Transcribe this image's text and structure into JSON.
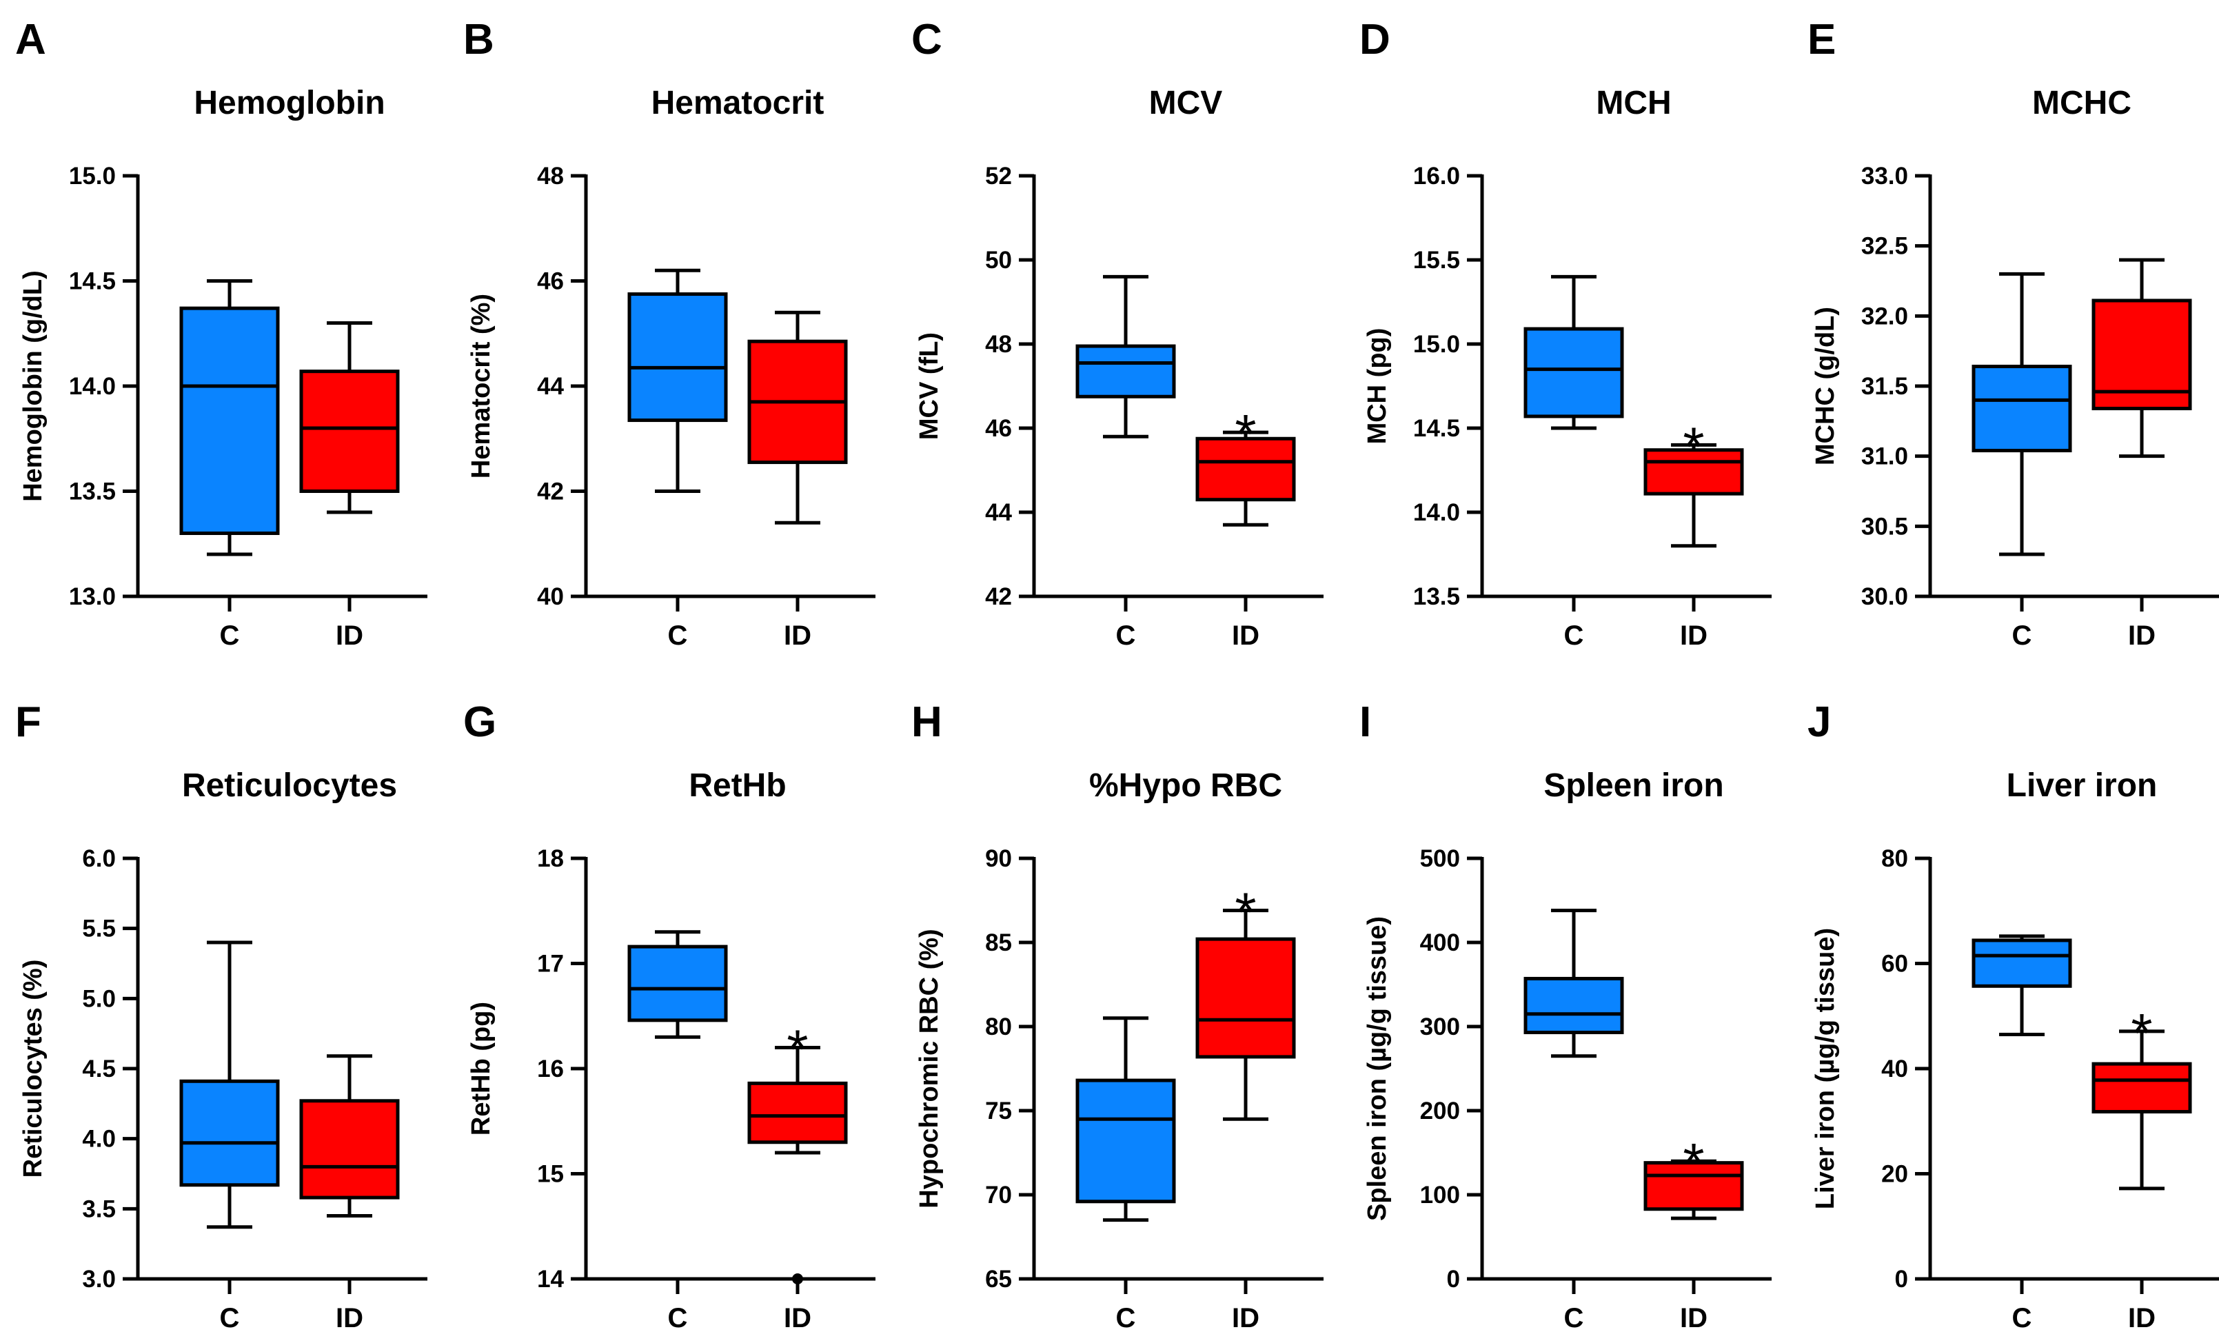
{
  "colors": {
    "control": "#0a84ff",
    "iron_deficient": "#ff0000",
    "ink": "#000000"
  },
  "chart_data": [
    {
      "type": "box",
      "letter": "A",
      "title": "Hemoglobin",
      "ylabel": "Hemoglobin (g/dL)",
      "ylim": [
        13.0,
        15.0
      ],
      "ticks": [
        "13.0",
        "13.5",
        "14.0",
        "14.5",
        "15.0"
      ],
      "categories": [
        "C",
        "ID"
      ],
      "boxes": [
        {
          "group": "C",
          "min": 13.2,
          "q1": 13.3,
          "median": 14.0,
          "q3": 14.37,
          "max": 14.5
        },
        {
          "group": "ID",
          "min": 13.4,
          "q1": 13.5,
          "median": 13.8,
          "q3": 14.07,
          "max": 14.3
        }
      ]
    },
    {
      "type": "box",
      "letter": "B",
      "title": "Hematocrit",
      "ylabel": "Hematocrit (%)",
      "ylim": [
        40,
        48
      ],
      "ticks": [
        "40",
        "42",
        "44",
        "46",
        "48"
      ],
      "categories": [
        "C",
        "ID"
      ],
      "boxes": [
        {
          "group": "C",
          "min": 42.0,
          "q1": 43.35,
          "median": 44.35,
          "q3": 45.75,
          "max": 46.2
        },
        {
          "group": "ID",
          "min": 41.4,
          "q1": 42.55,
          "median": 43.7,
          "q3": 44.85,
          "max": 45.4
        }
      ]
    },
    {
      "type": "box",
      "letter": "C",
      "title": "MCV",
      "ylabel": "MCV (fL)",
      "ylim": [
        42,
        52
      ],
      "ticks": [
        "42",
        "44",
        "46",
        "48",
        "50",
        "52"
      ],
      "categories": [
        "C",
        "ID"
      ],
      "boxes": [
        {
          "group": "C",
          "min": 45.8,
          "q1": 46.75,
          "median": 47.55,
          "q3": 47.95,
          "max": 49.6
        },
        {
          "group": "ID",
          "min": 43.7,
          "q1": 44.3,
          "median": 45.2,
          "q3": 45.75,
          "max": 45.9,
          "star": "*"
        }
      ]
    },
    {
      "type": "box",
      "letter": "D",
      "title": "MCH",
      "ylabel": "MCH (pg)",
      "ylim": [
        13.5,
        16.0
      ],
      "ticks": [
        "13.5",
        "14.0",
        "14.5",
        "15.0",
        "15.5",
        "16.0"
      ],
      "categories": [
        "C",
        "ID"
      ],
      "boxes": [
        {
          "group": "C",
          "min": 14.5,
          "q1": 14.57,
          "median": 14.85,
          "q3": 15.09,
          "max": 15.4
        },
        {
          "group": "ID",
          "min": 13.8,
          "q1": 14.11,
          "median": 14.3,
          "q3": 14.37,
          "max": 14.4,
          "star": "*"
        }
      ]
    },
    {
      "type": "box",
      "letter": "E",
      "title": "MCHC",
      "ylabel": "MCHC (g/dL)",
      "ylim": [
        30.0,
        33.0
      ],
      "ticks": [
        "30.0",
        "30.5",
        "31.0",
        "31.5",
        "32.0",
        "32.5",
        "33.0"
      ],
      "categories": [
        "C",
        "ID"
      ],
      "boxes": [
        {
          "group": "C",
          "min": 30.3,
          "q1": 31.04,
          "median": 31.4,
          "q3": 31.64,
          "max": 32.3
        },
        {
          "group": "ID",
          "min": 31.0,
          "q1": 31.34,
          "median": 31.46,
          "q3": 32.11,
          "max": 32.4
        }
      ]
    },
    {
      "type": "box",
      "letter": "F",
      "title": "Reticulocytes",
      "ylabel": "Reticulocytes (%)",
      "ylim": [
        3.0,
        6.0
      ],
      "ticks": [
        "3.0",
        "3.5",
        "4.0",
        "4.5",
        "5.0",
        "5.5",
        "6.0"
      ],
      "categories": [
        "C",
        "ID"
      ],
      "boxes": [
        {
          "group": "C",
          "min": 3.37,
          "q1": 3.67,
          "median": 3.97,
          "q3": 4.41,
          "max": 5.4
        },
        {
          "group": "ID",
          "min": 3.45,
          "q1": 3.58,
          "median": 3.8,
          "q3": 4.27,
          "max": 4.59
        }
      ]
    },
    {
      "type": "box",
      "letter": "G",
      "title": "RetHb",
      "ylabel": "RetHb (pg)",
      "ylim": [
        14,
        18
      ],
      "ticks": [
        "14",
        "15",
        "16",
        "17",
        "18"
      ],
      "categories": [
        "C",
        "ID"
      ],
      "boxes": [
        {
          "group": "C",
          "min": 16.3,
          "q1": 16.46,
          "median": 16.76,
          "q3": 17.16,
          "max": 17.3
        },
        {
          "group": "ID",
          "min": 15.2,
          "q1": 15.3,
          "median": 15.55,
          "q3": 15.86,
          "max": 16.2,
          "outlier": 14.0,
          "star": "*"
        }
      ]
    },
    {
      "type": "box",
      "letter": "H",
      "title": "%Hypo RBC",
      "ylabel": "Hypochromic RBC (%)",
      "ylim": [
        65,
        90
      ],
      "ticks": [
        "65",
        "70",
        "75",
        "80",
        "85",
        "90"
      ],
      "categories": [
        "C",
        "ID"
      ],
      "boxes": [
        {
          "group": "C",
          "min": 68.5,
          "q1": 69.6,
          "median": 74.5,
          "q3": 76.8,
          "max": 80.5
        },
        {
          "group": "ID",
          "min": 74.5,
          "q1": 78.2,
          "median": 80.4,
          "q3": 85.2,
          "max": 86.9,
          "star": "*"
        }
      ]
    },
    {
      "type": "box",
      "letter": "I",
      "title": "Spleen iron",
      "ylabel": "Spleen iron (µg/g tissue)",
      "ylim": [
        0,
        500
      ],
      "ticks": [
        "0",
        "100",
        "200",
        "300",
        "400",
        "500"
      ],
      "categories": [
        "C",
        "ID"
      ],
      "boxes": [
        {
          "group": "C",
          "min": 265,
          "q1": 293,
          "median": 315,
          "q3": 357,
          "max": 438
        },
        {
          "group": "ID",
          "min": 72,
          "q1": 83,
          "median": 123,
          "q3": 138,
          "max": 140,
          "star": "*"
        }
      ]
    },
    {
      "type": "box",
      "letter": "J",
      "title": "Liver iron",
      "ylabel": "Liver iron (µg/g tissue)",
      "ylim": [
        0,
        80
      ],
      "ticks": [
        "0",
        "20",
        "40",
        "60",
        "80"
      ],
      "categories": [
        "C",
        "ID"
      ],
      "boxes": [
        {
          "group": "C",
          "min": 46.5,
          "q1": 55.7,
          "median": 61.5,
          "q3": 64.4,
          "max": 65.2
        },
        {
          "group": "ID",
          "min": 17.2,
          "q1": 31.8,
          "median": 37.8,
          "q3": 40.9,
          "max": 47.1,
          "star": "*"
        }
      ]
    }
  ]
}
